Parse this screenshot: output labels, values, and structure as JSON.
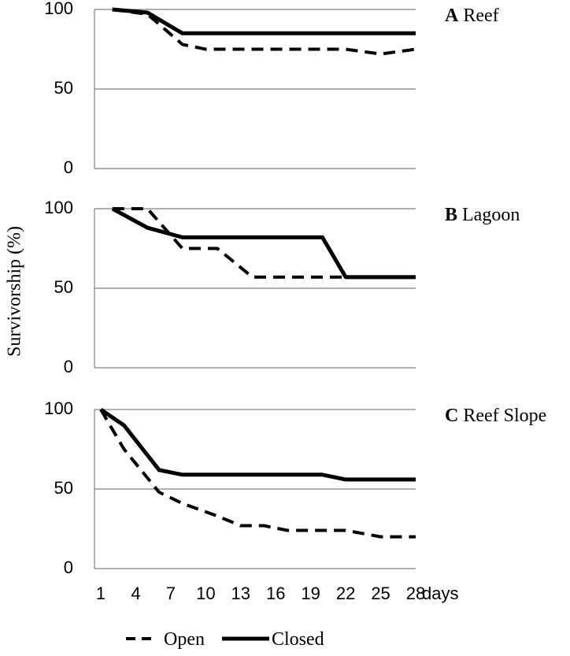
{
  "chart_data": {
    "type": "line",
    "ylabel": "Survivorship (%)",
    "x_unit_label": "days",
    "x_ticks": [
      1,
      4,
      7,
      10,
      13,
      16,
      19,
      22,
      25,
      28
    ],
    "y_ticks": [
      0,
      50,
      100
    ],
    "xlim": [
      1,
      28
    ],
    "ylim": [
      0,
      100
    ],
    "grid": "horizontal",
    "legend": {
      "placement": "bottom",
      "entries": [
        {
          "label": "Open",
          "style": "dashed"
        },
        {
          "label": "Closed",
          "style": "solid"
        }
      ]
    },
    "colors": {
      "line": "#000000",
      "grid": "#808080"
    },
    "panels": [
      {
        "letter": "A",
        "name": "Reef",
        "series": [
          {
            "key": "closed",
            "x": [
              2,
              5,
              8,
              28
            ],
            "y": [
              100,
              98,
              85,
              85
            ]
          },
          {
            "key": "open",
            "x": [
              2,
              5,
              8,
              10,
              13,
              16,
              19,
              22,
              25,
              28
            ],
            "y": [
              100,
              97,
              78,
              75,
              75,
              75,
              75,
              75,
              72,
              75
            ]
          }
        ]
      },
      {
        "letter": "B",
        "name": "Lagoon",
        "series": [
          {
            "key": "closed",
            "x": [
              2,
              5,
              8,
              20,
              22,
              28
            ],
            "y": [
              100,
              88,
              82,
              82,
              57,
              57
            ]
          },
          {
            "key": "open",
            "x": [
              2,
              5,
              8,
              11,
              14,
              28
            ],
            "y": [
              100,
              100,
              75,
              75,
              57,
              57
            ]
          }
        ]
      },
      {
        "letter": "C",
        "name": "Reef Slope",
        "series": [
          {
            "key": "closed",
            "x": [
              1,
              3,
              6,
              8,
              20,
              22,
              28
            ],
            "y": [
              100,
              90,
              62,
              59,
              59,
              56,
              56
            ]
          },
          {
            "key": "open",
            "x": [
              1,
              3,
              6,
              8,
              11,
              13,
              15,
              17,
              20,
              22,
              25,
              28
            ],
            "y": [
              100,
              75,
              48,
              41,
              33,
              27,
              27,
              24,
              24,
              24,
              20,
              20
            ]
          }
        ]
      }
    ]
  }
}
